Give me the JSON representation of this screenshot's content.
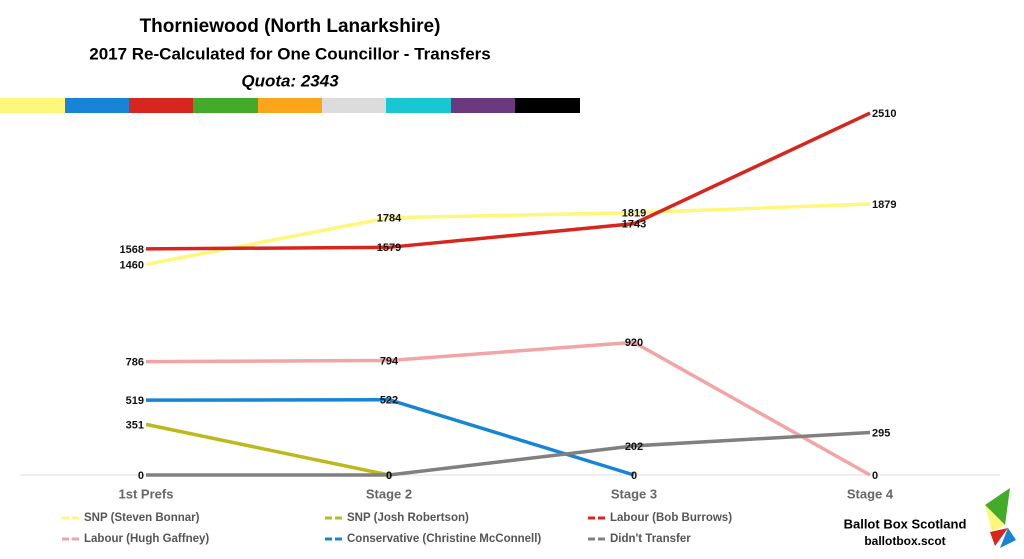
{
  "chart_data": {
    "type": "line",
    "title": "Thorniewood (North Lanarkshire)",
    "subtitle": "2017 Re-Calculated for One Councillor - Transfers",
    "annotation": "Quota: 2343",
    "categories": [
      "1st Prefs",
      "Stage 2",
      "Stage 3",
      "Stage 4"
    ],
    "series": [
      {
        "name": "SNP (Steven Bonnar)",
        "color": "#fff77c",
        "values": [
          1460,
          1784,
          1819,
          1879
        ]
      },
      {
        "name": "SNP (Josh Robertson)",
        "color": "#bcb91b",
        "values": [
          351,
          0,
          null,
          null
        ]
      },
      {
        "name": "Labour (Bob Burrows)",
        "color": "#d7261e",
        "values": [
          1568,
          1579,
          1743,
          2510
        ]
      },
      {
        "name": "Labour (Hugh Gaffney)",
        "color": "#f2a5a5",
        "values": [
          786,
          794,
          920,
          0
        ]
      },
      {
        "name": "Conservative (Christine McConnell)",
        "color": "#1784d6",
        "values": [
          519,
          522,
          0,
          null
        ]
      },
      {
        "name": "Didn't Transfer",
        "color": "#808080",
        "values": [
          0,
          0,
          202,
          295
        ]
      }
    ],
    "ylim": [
      0,
      3000
    ],
    "brand": "Ballot Box Scotland",
    "brand_url": "ballotbox.scot"
  }
}
